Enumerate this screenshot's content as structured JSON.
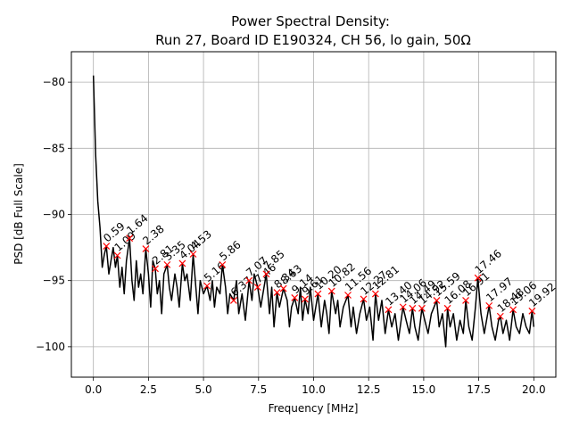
{
  "chart_data": {
    "type": "line",
    "title_line1": "Power Spectral Density:",
    "title_line2": "Run 27, Board ID E190324, CH 56, lo gain, 50Ω",
    "xlabel": "Frequency [MHz]",
    "ylabel": "PSD [dB Full Scale]",
    "xlim": [
      -1.0,
      21.0
    ],
    "ylim": [
      -102.3,
      -77.7
    ],
    "xticks": [
      0.0,
      2.5,
      5.0,
      7.5,
      10.0,
      12.5,
      15.0,
      17.5,
      20.0
    ],
    "xtick_labels": [
      "0.0",
      "2.5",
      "5.0",
      "7.5",
      "10.0",
      "12.5",
      "15.0",
      "17.5",
      "20.0"
    ],
    "yticks": [
      -100,
      -95,
      -90,
      -85,
      -80
    ],
    "ytick_labels": [
      "−100",
      "−95",
      "−90",
      "−85",
      "−80"
    ],
    "grid": true,
    "line_color": "#000000",
    "marker_color": "#ff0000",
    "series": [
      {
        "x": [
          0.0,
          0.1,
          0.2,
          0.3,
          0.4,
          0.5,
          0.59,
          0.7,
          0.8,
          0.9,
          1.0,
          1.09,
          1.2,
          1.3,
          1.4,
          1.5,
          1.64,
          1.75,
          1.85,
          1.95,
          2.05,
          2.15,
          2.25,
          2.38,
          2.5,
          2.6,
          2.7,
          2.81,
          2.9,
          3.0,
          3.1,
          3.2,
          3.35,
          3.45,
          3.55,
          3.7,
          3.8,
          3.9,
          4.04,
          4.15,
          4.25,
          4.4,
          4.53,
          4.65,
          4.75,
          4.85,
          5.0,
          5.16,
          5.3,
          5.4,
          5.5,
          5.6,
          5.75,
          5.86,
          6.0,
          6.1,
          6.2,
          6.37,
          6.5,
          6.6,
          6.75,
          6.9,
          7.07,
          7.2,
          7.3,
          7.46,
          7.6,
          7.7,
          7.85,
          8.0,
          8.1,
          8.2,
          8.34,
          8.45,
          8.63,
          8.8,
          8.9,
          9.0,
          9.14,
          9.3,
          9.4,
          9.5,
          9.61,
          9.75,
          9.85,
          10.0,
          10.2,
          10.35,
          10.5,
          10.6,
          10.7,
          10.82,
          11.0,
          11.1,
          11.2,
          11.35,
          11.56,
          11.7,
          11.8,
          11.95,
          12.1,
          12.27,
          12.4,
          12.55,
          12.7,
          12.81,
          12.95,
          13.1,
          13.25,
          13.4,
          13.55,
          13.7,
          13.85,
          14.06,
          14.2,
          14.35,
          14.49,
          14.6,
          14.75,
          14.92,
          15.05,
          15.2,
          15.35,
          15.59,
          15.7,
          15.85,
          16.0,
          16.08,
          16.2,
          16.35,
          16.5,
          16.65,
          16.8,
          16.91,
          17.05,
          17.2,
          17.35,
          17.46,
          17.6,
          17.75,
          17.97,
          18.1,
          18.25,
          18.4,
          18.48,
          18.6,
          18.75,
          18.9,
          19.06,
          19.2,
          19.35,
          19.5,
          19.65,
          19.8,
          19.92,
          20.0
        ],
        "y": [
          -79.5,
          -85.5,
          -89.0,
          -91.0,
          -94.0,
          -93.0,
          -92.4,
          -94.5,
          -93.5,
          -92.5,
          -94.0,
          -93.1,
          -95.5,
          -94.0,
          -96.0,
          -93.5,
          -91.8,
          -95.0,
          -96.5,
          -93.5,
          -95.5,
          -94.5,
          -96.0,
          -92.6,
          -94.5,
          -97.0,
          -93.5,
          -94.1,
          -96.0,
          -95.0,
          -97.5,
          -94.5,
          -93.8,
          -95.5,
          -96.5,
          -94.5,
          -95.5,
          -97.0,
          -93.7,
          -95.0,
          -94.5,
          -96.5,
          -93.0,
          -95.5,
          -97.5,
          -95.0,
          -96.0,
          -95.4,
          -96.5,
          -95.0,
          -97.0,
          -95.5,
          -96.0,
          -93.8,
          -95.5,
          -97.5,
          -96.0,
          -96.5,
          -95.0,
          -97.5,
          -96.0,
          -98.0,
          -95.0,
          -96.5,
          -94.5,
          -95.5,
          -97.0,
          -96.0,
          -94.5,
          -97.5,
          -95.5,
          -98.5,
          -95.9,
          -97.0,
          -95.6,
          -96.5,
          -98.5,
          -97.0,
          -96.3,
          -97.5,
          -95.5,
          -98.0,
          -96.4,
          -97.5,
          -95.5,
          -98.0,
          -96.0,
          -98.5,
          -96.5,
          -97.5,
          -99.0,
          -95.8,
          -97.5,
          -96.5,
          -98.5,
          -97.0,
          -96.1,
          -98.5,
          -97.0,
          -99.0,
          -97.5,
          -96.4,
          -98.0,
          -97.0,
          -99.5,
          -96.0,
          -98.0,
          -96.5,
          -99.0,
          -97.2,
          -98.5,
          -97.5,
          -99.5,
          -97.0,
          -98.0,
          -99.0,
          -97.1,
          -98.5,
          -99.5,
          -97.1,
          -98.0,
          -99.0,
          -97.5,
          -96.5,
          -98.5,
          -97.5,
          -100.0,
          -97.1,
          -98.5,
          -97.5,
          -99.5,
          -98.0,
          -99.0,
          -96.5,
          -98.5,
          -99.5,
          -97.0,
          -94.8,
          -97.5,
          -99.0,
          -96.9,
          -98.5,
          -99.5,
          -98.0,
          -97.7,
          -99.0,
          -98.0,
          -99.5,
          -97.2,
          -98.5,
          -99.0,
          -97.5,
          -98.5,
          -99.0,
          -97.3,
          -98.5
        ]
      }
    ],
    "peaks": {
      "x": [
        0.59,
        1.09,
        1.64,
        2.38,
        2.81,
        3.35,
        4.04,
        4.53,
        5.16,
        5.86,
        6.37,
        7.07,
        7.46,
        7.85,
        8.34,
        8.63,
        9.14,
        9.61,
        10.2,
        10.82,
        11.56,
        12.27,
        12.81,
        13.4,
        14.06,
        14.49,
        14.92,
        15.59,
        16.08,
        16.91,
        17.46,
        17.97,
        18.48,
        19.06,
        19.92
      ],
      "y": [
        -92.4,
        -93.1,
        -91.8,
        -92.6,
        -94.1,
        -93.8,
        -93.7,
        -93.0,
        -95.4,
        -93.8,
        -96.5,
        -95.0,
        -95.5,
        -94.5,
        -95.9,
        -95.6,
        -96.3,
        -96.4,
        -96.0,
        -95.8,
        -96.1,
        -96.4,
        -96.0,
        -97.2,
        -97.0,
        -97.1,
        -97.1,
        -96.5,
        -97.1,
        -96.5,
        -94.8,
        -96.9,
        -97.7,
        -97.2,
        -97.3
      ],
      "labels": [
        "0.59",
        "1.09",
        "1.64",
        "2.38",
        "2.81",
        "3.35",
        "4.04",
        "4.53",
        "5.16",
        "5.86",
        "6.37",
        "7.07",
        "7.46",
        "7.85",
        "8.34",
        "8.63",
        "9.14",
        "9.61",
        "10.20",
        "10.82",
        "11.56",
        "12.27",
        "12.81",
        "13.40",
        "14.06",
        "14.49",
        "14.92",
        "15.59",
        "16.08",
        "16.91",
        "17.46",
        "17.97",
        "18.48",
        "19.06",
        "19.92"
      ]
    }
  }
}
